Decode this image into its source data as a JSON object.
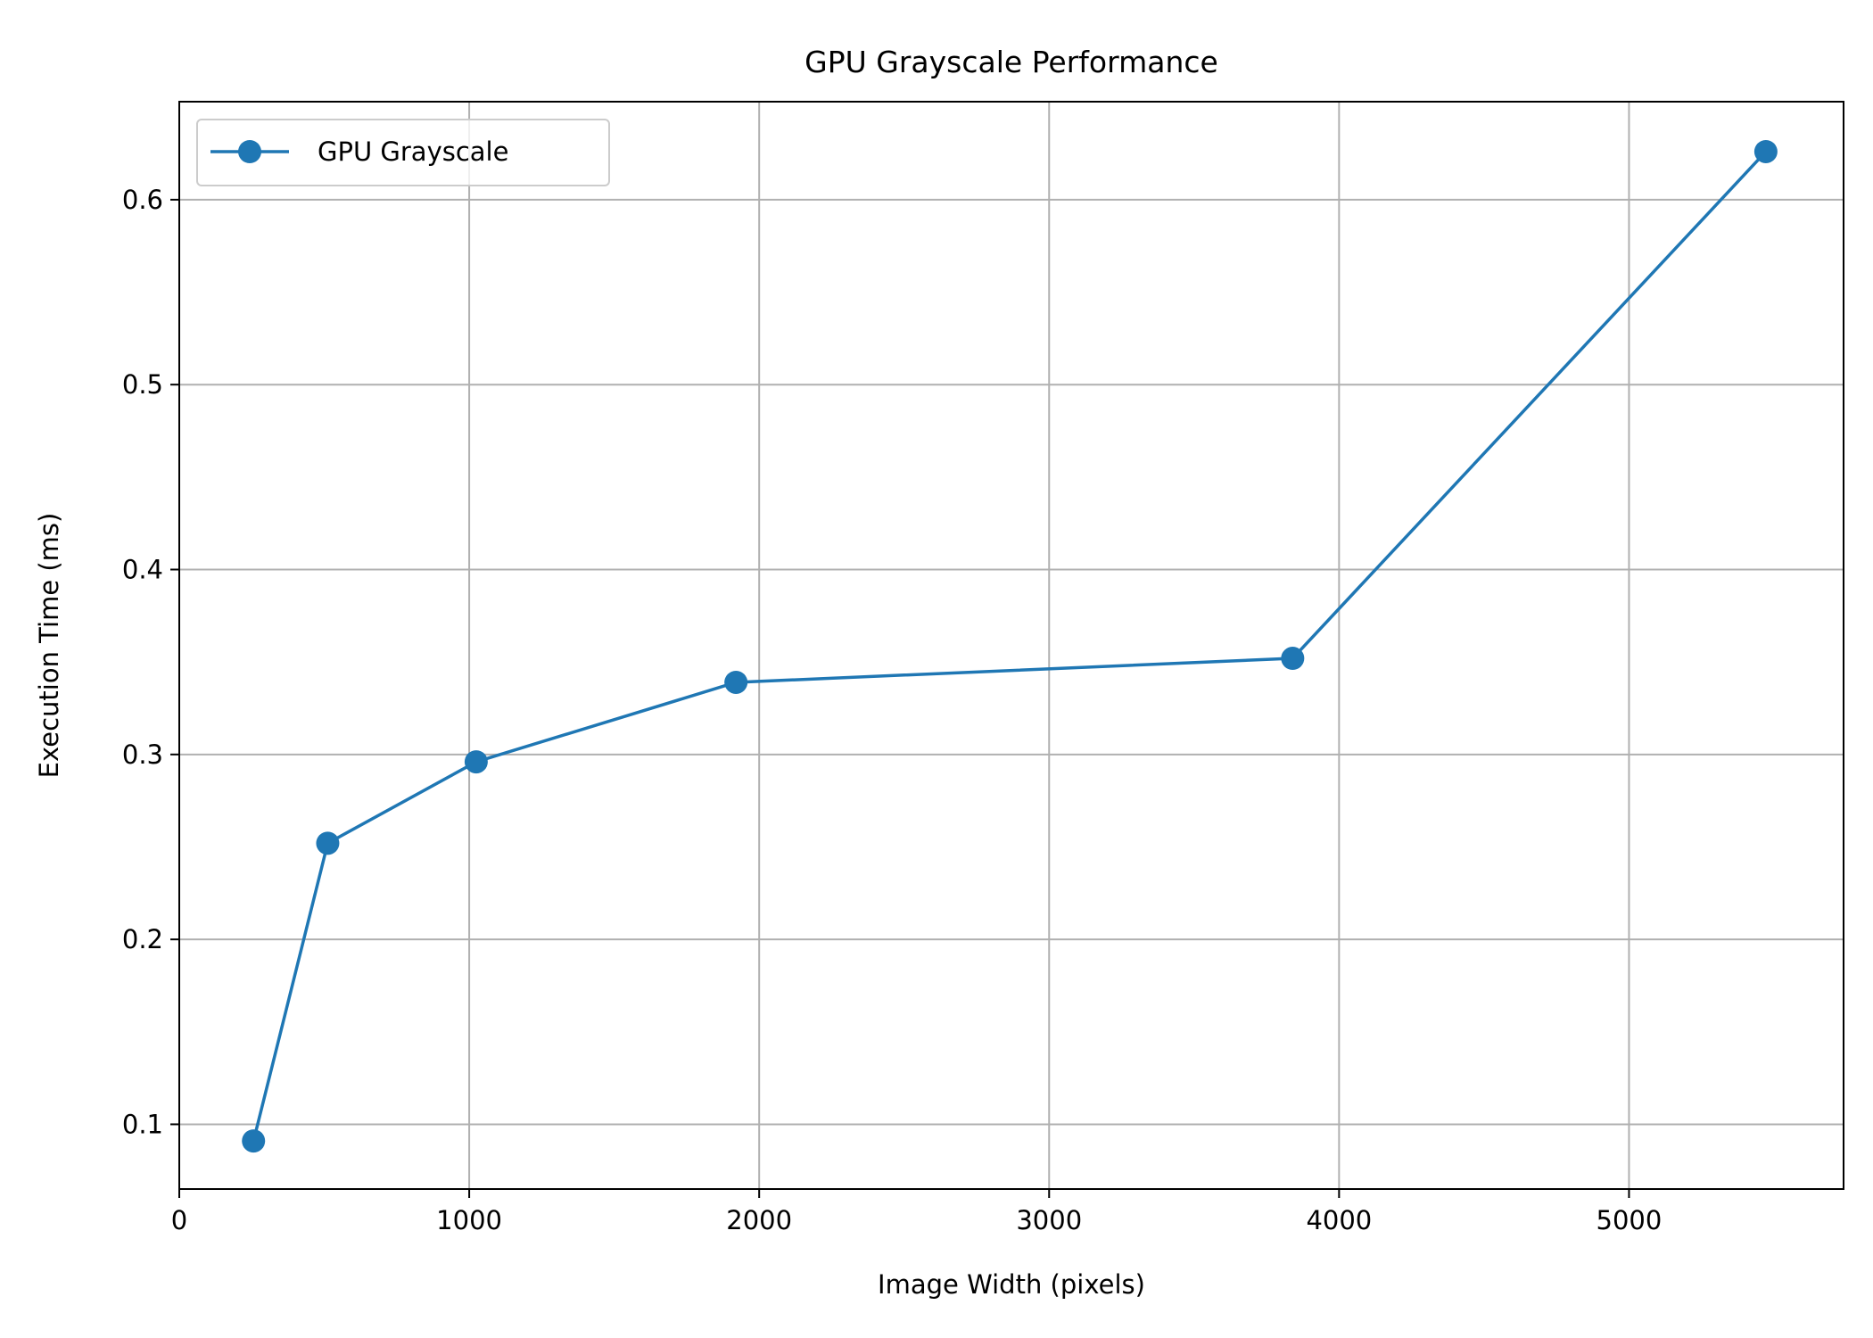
{
  "chart_data": {
    "type": "line",
    "title": "GPU Grayscale Performance",
    "xlabel": "Image Width (pixels)",
    "ylabel": "Execution Time (ms)",
    "xlim": [
      0,
      5740
    ],
    "ylim": [
      0.065,
      0.653
    ],
    "xticks": [
      0,
      1000,
      2000,
      3000,
      4000,
      5000
    ],
    "xtick_labels": [
      "0",
      "1000",
      "2000",
      "3000",
      "4000",
      "5000"
    ],
    "yticks": [
      0.1,
      0.2,
      0.3,
      0.4,
      0.5,
      0.6
    ],
    "ytick_labels": [
      "0.1",
      "0.2",
      "0.3",
      "0.4",
      "0.5",
      "0.6"
    ],
    "grid": true,
    "legend_position": "upper-left",
    "series": [
      {
        "name": "GPU Grayscale",
        "color": "#1f77b4",
        "marker": "circle",
        "x": [
          256,
          512,
          1024,
          1920,
          3840,
          5472
        ],
        "y": [
          0.091,
          0.252,
          0.296,
          0.339,
          0.352,
          0.626
        ]
      }
    ]
  }
}
